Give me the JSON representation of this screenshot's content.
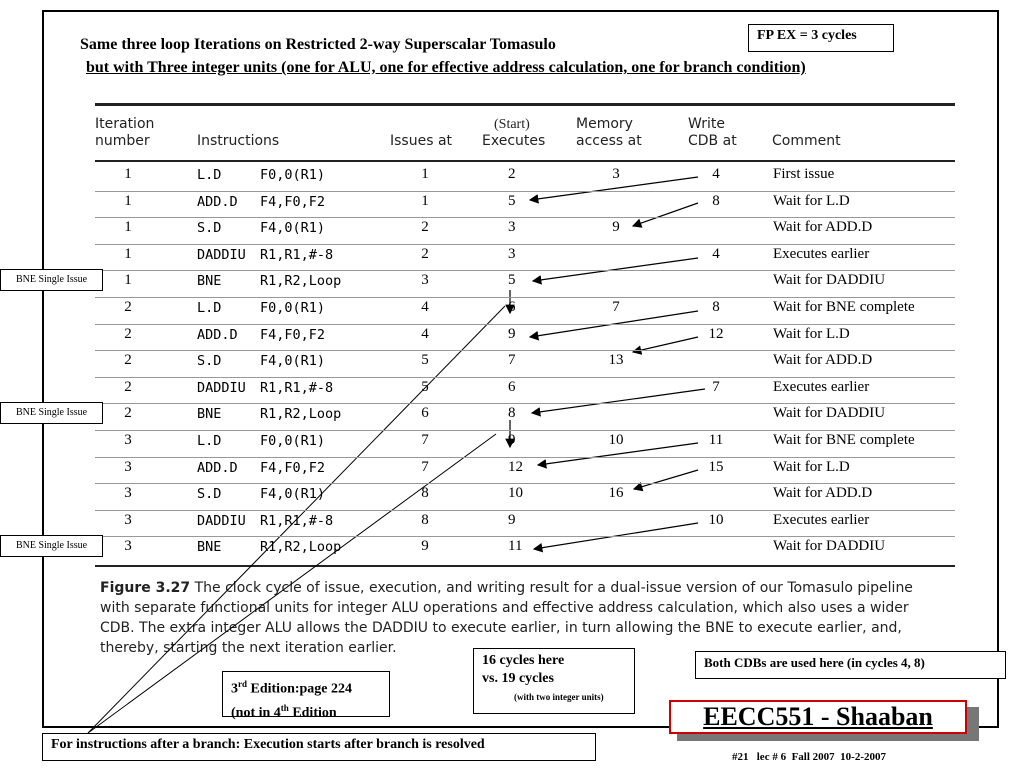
{
  "header": {
    "title": "Same three loop Iterations on Restricted 2-way Superscalar Tomasulo",
    "subtitle": "but with Three integer units (one for ALU, one for effective address calculation, one for branch condition)",
    "fp_box": "FP EX = 3 cycles"
  },
  "table": {
    "columns": [
      [
        "Iteration",
        "number"
      ],
      [
        "Instructions"
      ],
      [
        "Issues at"
      ],
      [
        "(Start)",
        "Executes"
      ],
      [
        "Memory",
        "access at"
      ],
      [
        "Write",
        "CDB at"
      ],
      [
        "Comment"
      ]
    ],
    "rows": [
      {
        "iteration": 1,
        "op": "L.D",
        "operands": "F0,0(R1)",
        "issue": 1,
        "execute": 2,
        "memory": 3,
        "write": 4,
        "comment": "First issue"
      },
      {
        "iteration": 1,
        "op": "ADD.D",
        "operands": "F4,F0,F2",
        "issue": 1,
        "execute": 5,
        "write": 8,
        "comment": "Wait for L.D"
      },
      {
        "iteration": 1,
        "op": "S.D",
        "operands": "F4,0(R1)",
        "issue": 2,
        "execute": 3,
        "memory": 9,
        "comment": "Wait for ADD.D"
      },
      {
        "iteration": 1,
        "op": "DADDIU",
        "operands": "R1,R1,#-8",
        "issue": 2,
        "execute": 3,
        "write": 4,
        "comment": "Executes earlier"
      },
      {
        "iteration": 1,
        "op": "BNE",
        "operands": "R1,R2,Loop",
        "issue": 3,
        "execute": 5,
        "comment": "Wait for DADDIU"
      },
      {
        "iteration": 2,
        "op": "L.D",
        "operands": "F0,0(R1)",
        "issue": 4,
        "execute": 6,
        "memory": 7,
        "write": 8,
        "comment": "Wait for BNE complete"
      },
      {
        "iteration": 2,
        "op": "ADD.D",
        "operands": "F4,F0,F2",
        "issue": 4,
        "execute": 9,
        "write": 12,
        "comment": "Wait for L.D"
      },
      {
        "iteration": 2,
        "op": "S.D",
        "operands": "F4,0(R1)",
        "issue": 5,
        "execute": 7,
        "memory": 13,
        "comment": "Wait for ADD.D"
      },
      {
        "iteration": 2,
        "op": "DADDIU",
        "operands": "R1,R1,#-8",
        "issue": 5,
        "execute": 6,
        "write": 7,
        "comment": "Executes earlier"
      },
      {
        "iteration": 2,
        "op": "BNE",
        "operands": "R1,R2,Loop",
        "issue": 6,
        "execute": 8,
        "comment": "Wait for DADDIU"
      },
      {
        "iteration": 3,
        "op": "L.D",
        "operands": "F0,0(R1)",
        "issue": 7,
        "execute": 9,
        "memory": 10,
        "write": 11,
        "comment": "Wait for BNE complete"
      },
      {
        "iteration": 3,
        "op": "ADD.D",
        "operands": "F4,F0,F2",
        "issue": 7,
        "execute": 12,
        "write": 15,
        "comment": "Wait for L.D"
      },
      {
        "iteration": 3,
        "op": "S.D",
        "operands": "F4,0(R1)",
        "issue": 8,
        "execute": 10,
        "memory": 16,
        "comment": "Wait for ADD.D"
      },
      {
        "iteration": 3,
        "op": "DADDIU",
        "operands": "R1,R1,#-8",
        "issue": 8,
        "execute": 9,
        "write": 10,
        "comment": "Executes earlier"
      },
      {
        "iteration": 3,
        "op": "BNE",
        "operands": "R1,R2,Loop",
        "issue": 9,
        "execute": 11,
        "comment": "Wait for DADDIU"
      }
    ]
  },
  "side_labels": [
    {
      "row": 4,
      "text": "BNE Single Issue"
    },
    {
      "row": 9,
      "text": "BNE Single Issue"
    },
    {
      "row": 14,
      "text": "BNE Single Issue"
    }
  ],
  "caption": {
    "label": "Figure 3.27",
    "text": "The clock cycle of issue, execution, and writing result for a dual-issue version of our Tomasulo pipeline with separate functional units for integer ALU operations and effective address calculation, which also uses a wider CDB. The extra integer ALU allows the DADDIU to execute earlier, in turn allowing the BNE to execute earlier, and, thereby, starting the next iteration earlier."
  },
  "notes": {
    "cycles": [
      "16 cycles here",
      "vs. 19 cycles",
      "(with two integer units)"
    ],
    "cdbs": "Both CDBs are used here (in cycles 4, 8)",
    "edition": {
      "num1": "3",
      "sup1": "rd",
      "rest1": " Edition:page 224",
      "pre2": "(not in 4",
      "sup2": "th",
      "rest2": " Edition"
    },
    "branch": "For instructions after a branch: Execution starts after branch is resolved"
  },
  "footer": {
    "brand": "EECC551 - Shaaban",
    "info": "#21   lec # 6  Fall 2007  10-2-2007"
  }
}
